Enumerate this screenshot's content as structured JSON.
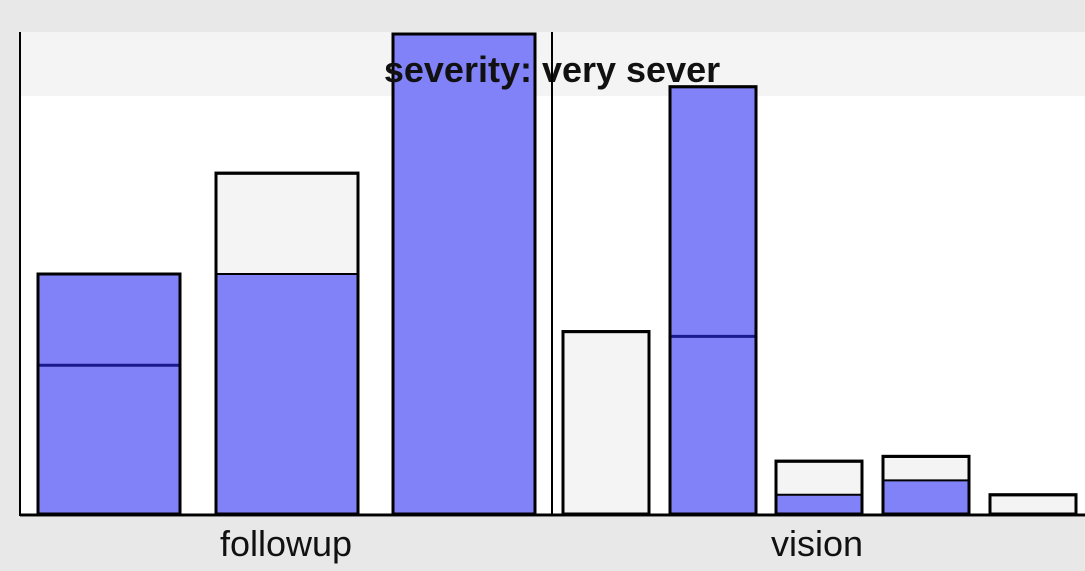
{
  "chart_data": {
    "type": "bar",
    "title": "severity: very sever",
    "xlabel": "",
    "ylabel": "",
    "ylim": [
      0,
      100
    ],
    "colors": {
      "background": "#e8e8e8",
      "plot": "#ffffff",
      "title_band": "#f4f4f4",
      "outer_bar": "#f4f4f4",
      "inner_fill": "#7777f7",
      "inner_line": "#1a1a8c",
      "axis": "#000000"
    },
    "panels": [
      {
        "category": "followup",
        "bars": [
          {
            "total": 50,
            "filled": 50,
            "mark": 31
          },
          {
            "total": 71,
            "filled": 50,
            "mark": 50
          },
          {
            "total": 100,
            "filled": 100,
            "mark": 100
          }
        ]
      },
      {
        "category": "vision",
        "bars": [
          {
            "total": 38,
            "filled": 0,
            "mark": 0
          },
          {
            "total": 89,
            "filled": 89,
            "mark": 37
          },
          {
            "total": 11,
            "filled": 4,
            "mark": 4
          },
          {
            "total": 12,
            "filled": 7,
            "mark": 7
          },
          {
            "total": 4,
            "filled": 0,
            "mark": 0
          }
        ]
      }
    ]
  }
}
